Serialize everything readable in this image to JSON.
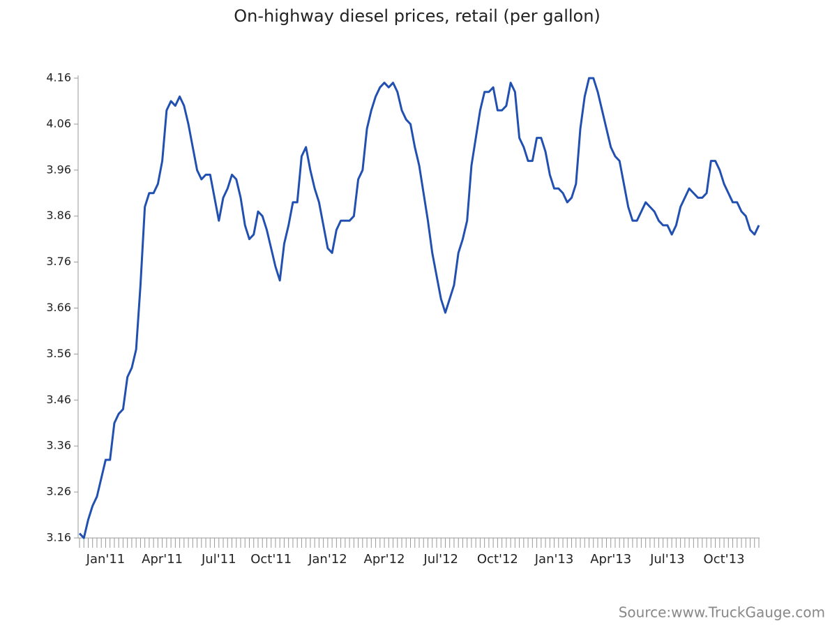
{
  "chart_data": {
    "type": "line",
    "title": "On-highway diesel prices, retail (per gallon)",
    "source": "Source:www.TruckGauge.com",
    "color": "#2150b0",
    "grid": false,
    "categories": [
      null,
      null,
      null,
      null,
      null,
      null,
      "Jan'11",
      null,
      null,
      null,
      null,
      null,
      null,
      null,
      null,
      null,
      null,
      null,
      null,
      "Apr'11",
      null,
      null,
      null,
      null,
      null,
      null,
      null,
      null,
      null,
      null,
      null,
      null,
      "Jul'11",
      null,
      null,
      null,
      null,
      null,
      null,
      null,
      null,
      null,
      null,
      null,
      "Oct'11",
      null,
      null,
      null,
      null,
      null,
      null,
      null,
      null,
      null,
      null,
      null,
      null,
      "Jan'12",
      null,
      null,
      null,
      null,
      null,
      null,
      null,
      null,
      null,
      null,
      null,
      null,
      "Apr'12",
      null,
      null,
      null,
      null,
      null,
      null,
      null,
      null,
      null,
      null,
      null,
      null,
      "Jul'12",
      null,
      null,
      null,
      null,
      null,
      null,
      null,
      null,
      null,
      null,
      null,
      null,
      "Oct'12",
      null,
      null,
      null,
      null,
      null,
      null,
      null,
      null,
      null,
      null,
      null,
      null,
      "Jan'13",
      null,
      null,
      null,
      null,
      null,
      null,
      null,
      null,
      null,
      null,
      null,
      null,
      "Apr'13",
      null,
      null,
      null,
      null,
      null,
      null,
      null,
      null,
      null,
      null,
      null,
      null,
      "Jul'13",
      null,
      null,
      null,
      null,
      null,
      null,
      null,
      null,
      null,
      null,
      null,
      null,
      "Oct'13",
      null,
      null,
      null,
      null,
      null,
      null,
      null,
      null
    ],
    "values": [
      3.17,
      3.16,
      3.2,
      3.23,
      3.25,
      3.29,
      3.33,
      3.33,
      3.41,
      3.43,
      3.44,
      3.51,
      3.53,
      3.57,
      3.71,
      3.88,
      3.91,
      3.91,
      3.93,
      3.98,
      4.09,
      4.11,
      4.1,
      4.12,
      4.1,
      4.06,
      4.01,
      3.96,
      3.94,
      3.95,
      3.95,
      3.9,
      3.85,
      3.9,
      3.92,
      3.95,
      3.94,
      3.9,
      3.84,
      3.81,
      3.82,
      3.87,
      3.86,
      3.83,
      3.79,
      3.75,
      3.72,
      3.8,
      3.84,
      3.89,
      3.89,
      3.99,
      4.01,
      3.96,
      3.92,
      3.89,
      3.84,
      3.79,
      3.78,
      3.83,
      3.85,
      3.85,
      3.85,
      3.86,
      3.94,
      3.96,
      4.05,
      4.09,
      4.12,
      4.14,
      4.15,
      4.14,
      4.15,
      4.13,
      4.09,
      4.07,
      4.06,
      4.01,
      3.97,
      3.91,
      3.85,
      3.78,
      3.73,
      3.68,
      3.65,
      3.68,
      3.71,
      3.78,
      3.81,
      3.85,
      3.97,
      4.03,
      4.09,
      4.13,
      4.13,
      4.14,
      4.09,
      4.09,
      4.1,
      4.15,
      4.13,
      4.03,
      4.01,
      3.98,
      3.98,
      4.03,
      4.03,
      4.0,
      3.95,
      3.92,
      3.92,
      3.91,
      3.89,
      3.9,
      3.93,
      4.05,
      4.12,
      4.16,
      4.16,
      4.13,
      4.09,
      4.05,
      4.01,
      3.99,
      3.98,
      3.93,
      3.88,
      3.85,
      3.85,
      3.87,
      3.89,
      3.88,
      3.87,
      3.85,
      3.84,
      3.84,
      3.82,
      3.84,
      3.88,
      3.9,
      3.92,
      3.91,
      3.9,
      3.9,
      3.91,
      3.98,
      3.98,
      3.96,
      3.93,
      3.91,
      3.89,
      3.89,
      3.87,
      3.86,
      3.83,
      3.82,
      3.84
    ],
    "ylim": [
      3.16,
      4.16
    ],
    "yticks": [
      3.16,
      3.26,
      3.36,
      3.46,
      3.56,
      3.66,
      3.76,
      3.86,
      3.96,
      4.06,
      4.16
    ]
  }
}
